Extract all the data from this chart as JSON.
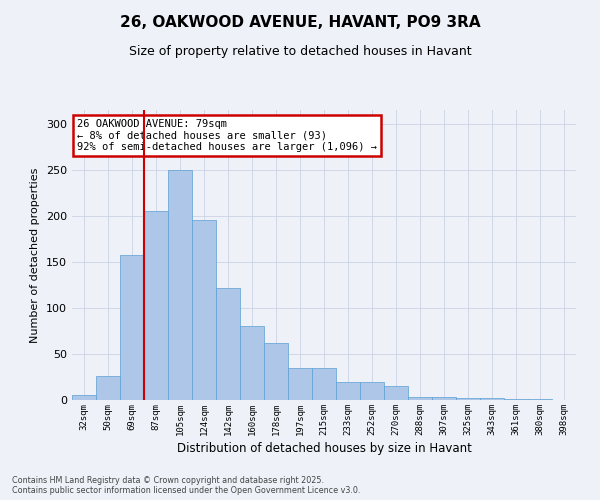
{
  "title_line1": "26, OAKWOOD AVENUE, HAVANT, PO9 3RA",
  "title_line2": "Size of property relative to detached houses in Havant",
  "xlabel": "Distribution of detached houses by size in Havant",
  "ylabel": "Number of detached properties",
  "bin_labels": [
    "32sqm",
    "50sqm",
    "69sqm",
    "87sqm",
    "105sqm",
    "124sqm",
    "142sqm",
    "160sqm",
    "178sqm",
    "197sqm",
    "215sqm",
    "233sqm",
    "252sqm",
    "270sqm",
    "288sqm",
    "307sqm",
    "325sqm",
    "343sqm",
    "361sqm",
    "380sqm",
    "398sqm"
  ],
  "bar_heights": [
    5,
    26,
    157,
    205,
    250,
    195,
    122,
    80,
    62,
    35,
    35,
    20,
    20,
    15,
    3,
    3,
    2,
    2,
    1,
    1,
    0
  ],
  "bar_color": "#aec6e8",
  "bar_edge_color": "#5a9fd4",
  "grid_color": "#d0d8e8",
  "bg_color": "#eef2f8",
  "red_line_bin_index": 3,
  "annotation_text": "26 OAKWOOD AVENUE: 79sqm\n← 8% of detached houses are smaller (93)\n92% of semi-detached houses are larger (1,096) →",
  "annotation_box_color": "#ffffff",
  "annotation_box_edge": "#cc0000",
  "ylim": [
    0,
    315
  ],
  "yticks": [
    0,
    50,
    100,
    150,
    200,
    250,
    300
  ],
  "footer_text": "Contains HM Land Registry data © Crown copyright and database right 2025.\nContains public sector information licensed under the Open Government Licence v3.0."
}
